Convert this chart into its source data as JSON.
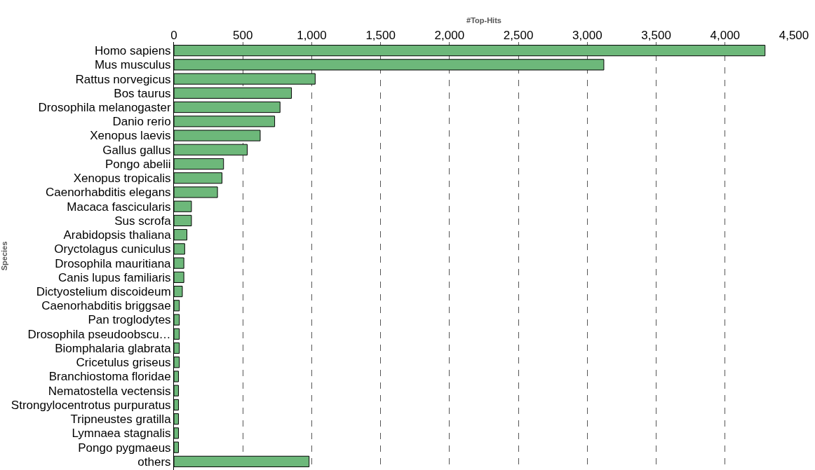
{
  "chart_data": {
    "type": "bar",
    "orientation": "horizontal",
    "xlabel": "#Top-Hits",
    "ylabel": "Species",
    "categories": [
      "Homo sapiens",
      "Mus musculus",
      "Rattus norvegicus",
      "Bos taurus",
      "Drosophila melanogaster",
      "Danio rerio",
      "Xenopus laevis",
      "Gallus gallus",
      "Pongo abelii",
      "Xenopus tropicalis",
      "Caenorhabditis elegans",
      "Macaca fascicularis",
      "Sus scrofa",
      "Arabidopsis thaliana",
      "Oryctolagus cuniculus",
      "Drosophila mauritiana",
      "Canis lupus familiaris",
      "Dictyostelium discoideum",
      "Caenorhabditis briggsae",
      "Pan troglodytes",
      "Drosophila pseudoobscu…",
      "Biomphalaria glabrata",
      "Cricetulus griseus",
      "Branchiostoma floridae",
      "Nematostella vectensis",
      "Strongylocentrotus purpuratus",
      "Tripneustes gratilla",
      "Lymnaea stagnalis",
      "Pongo pygmaeus",
      "others"
    ],
    "values": [
      4290,
      3120,
      1025,
      853,
      770,
      731,
      626,
      532,
      360,
      349,
      316,
      127,
      127,
      94,
      78,
      72,
      72,
      61,
      39,
      39,
      39,
      39,
      39,
      33,
      33,
      33,
      33,
      33,
      33,
      981
    ],
    "color": "#6db87a",
    "xlim": [
      0,
      4500
    ],
    "xticks": [
      {
        "value": 0,
        "label": "0"
      },
      {
        "value": 500,
        "label": "500"
      },
      {
        "value": 1000,
        "label": "1,000"
      },
      {
        "value": 1500,
        "label": "1,500"
      },
      {
        "value": 2000,
        "label": "2,000"
      },
      {
        "value": 2500,
        "label": "2,500"
      },
      {
        "value": 3000,
        "label": "3,000"
      },
      {
        "value": 3500,
        "label": "3,500"
      },
      {
        "value": 4000,
        "label": "4,000"
      },
      {
        "value": 4500,
        "label": "4,500"
      }
    ],
    "grid": "x"
  }
}
